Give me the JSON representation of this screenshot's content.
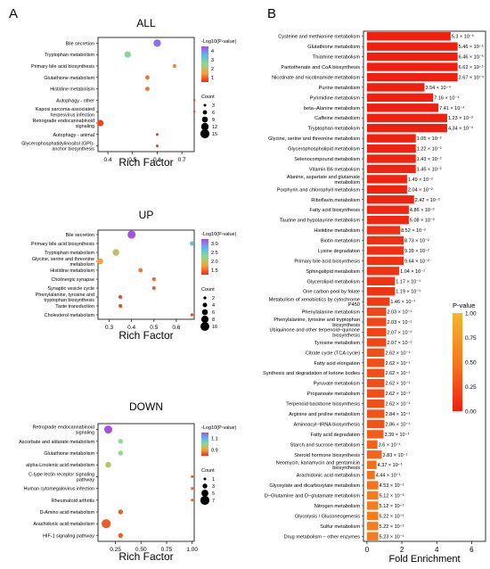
{
  "panel_labels": [
    "A",
    "B"
  ],
  "dot_plots": [
    {
      "title": "ALL",
      "xlabel": "Rich Factor",
      "xticks": [
        0.4,
        0.5,
        0.6,
        0.7
      ],
      "xlim": [
        0.36,
        0.75
      ],
      "color_legend_title": "-Log10(P-value)",
      "color_ticks": [
        "4",
        "3",
        "2",
        "1"
      ],
      "color_range": [
        0.6,
        4.4
      ],
      "size_legend_title": "Count",
      "size_legend": [
        "3",
        "6",
        "9",
        "12",
        "15"
      ],
      "size_values": [
        3,
        6,
        9,
        12,
        15
      ],
      "size_range": [
        2,
        16
      ],
      "terms": [
        {
          "name": "Bile secretion",
          "rich": 0.6,
          "logp": 4.1,
          "count": 12
        },
        {
          "name": "Tryptophan metabolism",
          "rich": 0.48,
          "logp": 2.6,
          "count": 10
        },
        {
          "name": "Primary bile acid biosynthesis",
          "rich": 0.67,
          "logp": 1.3,
          "count": 5
        },
        {
          "name": "Glutathione metabolism",
          "rich": 0.56,
          "logp": 1.2,
          "count": 6
        },
        {
          "name": "Histidine metabolism",
          "rich": 0.56,
          "logp": 1.2,
          "count": 6
        },
        {
          "name": "Autophagy - other",
          "rich": 0.75,
          "logp": 0.7,
          "count": 2
        },
        {
          "name": "Kaposi sarcoma-associated herpesvirus infection",
          "rich": 0.75,
          "logp": 0.7,
          "count": 2
        },
        {
          "name": "Retrograde endocannabinoid signaling",
          "rich": 0.37,
          "logp": 0.8,
          "count": 10
        },
        {
          "name": "Autophagy - animal",
          "rich": 0.6,
          "logp": 0.7,
          "count": 3
        },
        {
          "name": "Glycerophosphatidylinositol (GPI)- anchor biosynthesis",
          "rich": 0.6,
          "logp": 0.7,
          "count": 3
        }
      ]
    },
    {
      "title": "UP",
      "xlabel": "Rich Factor",
      "xticks": [
        0.3,
        0.4,
        0.5,
        0.6
      ],
      "xlim": [
        0.25,
        0.68
      ],
      "color_legend_title": "-Log10(P-value)",
      "color_ticks": [
        "3.0",
        "2.5",
        "2.0",
        "1.5"
      ],
      "color_range": [
        1.3,
        3.2
      ],
      "size_legend_title": "Count",
      "size_legend": [
        "2",
        "4",
        "6",
        "8",
        "10"
      ],
      "size_values": [
        2,
        4,
        6,
        8,
        10
      ],
      "size_range": [
        1,
        11
      ],
      "terms": [
        {
          "name": "Bile secretion",
          "rich": 0.4,
          "logp": 3.2,
          "count": 9
        },
        {
          "name": "Primary bile acid biosynthesis",
          "rich": 0.67,
          "logp": 2.6,
          "count": 4
        },
        {
          "name": "Tryptophan metabolism",
          "rich": 0.33,
          "logp": 2.0,
          "count": 7
        },
        {
          "name": "Glycine, serine and threonine metabolism",
          "rich": 0.26,
          "logp": 1.8,
          "count": 6
        },
        {
          "name": "Histidine metabolism",
          "rich": 0.44,
          "logp": 1.6,
          "count": 4
        },
        {
          "name": "Cholinergic synapse",
          "rich": 0.5,
          "logp": 1.5,
          "count": 3
        },
        {
          "name": "Synaptic vesicle cycle",
          "rich": 0.5,
          "logp": 1.5,
          "count": 3
        },
        {
          "name": "Phenylalanine, tyrosine and tryptophan biosynthesis",
          "rich": 0.35,
          "logp": 1.4,
          "count": 3
        },
        {
          "name": "Taste transduction",
          "rich": 0.35,
          "logp": 1.4,
          "count": 3
        },
        {
          "name": "Cholesterol metabolism",
          "rich": 0.67,
          "logp": 1.4,
          "count": 2
        }
      ]
    },
    {
      "title": "DOWN",
      "xlabel": "Rich Factor",
      "xticks": [
        0.25,
        0.5,
        0.75,
        1.0
      ],
      "xtick_labels": [
        "0.25",
        "0.50",
        "0.75",
        "1.00"
      ],
      "xlim": [
        0.08,
        1.02
      ],
      "color_legend_title": "-Log10(P-value)",
      "color_ticks": [
        "1.1",
        "0.9"
      ],
      "color_range": [
        0.75,
        1.25
      ],
      "size_legend_title": "Count",
      "size_legend": [
        "1",
        "3",
        "5",
        "7"
      ],
      "size_values": [
        1,
        3,
        5,
        7
      ],
      "size_range": [
        0.5,
        7.5
      ],
      "terms": [
        {
          "name": "Retrograde endocannabinoid signaling",
          "rich": 0.18,
          "logp": 1.25,
          "count": 6
        },
        {
          "name": "Ascorbate and aldarate metabolism",
          "rich": 0.3,
          "logp": 1.0,
          "count": 3
        },
        {
          "name": "Glutathione metabolism",
          "rich": 0.3,
          "logp": 1.0,
          "count": 3
        },
        {
          "name": "alpha-Linolenic acid metabolism",
          "rich": 0.18,
          "logp": 0.95,
          "count": 4
        },
        {
          "name": "C-type lectin receptor signaling pathway",
          "rich": 1.0,
          "logp": 0.8,
          "count": 1
        },
        {
          "name": "Human cytomegalovirus infection",
          "rich": 1.0,
          "logp": 0.8,
          "count": 1
        },
        {
          "name": "Rheumatoid arthritis",
          "rich": 1.0,
          "logp": 0.8,
          "count": 1
        },
        {
          "name": "D-Amino acid metabolism",
          "rich": 0.3,
          "logp": 0.8,
          "count": 3
        },
        {
          "name": "Arachidonic acid metabolism",
          "rich": 0.16,
          "logp": 0.8,
          "count": 7
        },
        {
          "name": "HIF-1 signaling pathway",
          "rich": 0.3,
          "logp": 0.8,
          "count": 3
        }
      ]
    }
  ],
  "bar_chart": {
    "type": "bar",
    "xlabel": "Fold Enrichment",
    "xticks": [
      0,
      2,
      4,
      6
    ],
    "xlim": [
      -0.2,
      6.8
    ],
    "legend_title": "P-value",
    "legend_ticks": [
      "1.00",
      "0.75",
      "0.50",
      "0.25",
      "0.00"
    ],
    "bars": [
      {
        "name": "Cysteine and methionine metabolism",
        "fold": 4.8,
        "p": "5.3 × 10⁻⁶",
        "pval": 5.3e-06
      },
      {
        "name": "Glutathione metabolism",
        "fold": 5.2,
        "p": "5.46 × 10⁻⁵",
        "pval": 5.46e-05
      },
      {
        "name": "Thiamine metabolism",
        "fold": 5.2,
        "p": "6.46 × 10⁻⁵",
        "pval": 6.46e-05
      },
      {
        "name": "Pantothenate and CoA biosynthesis",
        "fold": 5.2,
        "p": "6.62 × 10⁻⁵",
        "pval": 6.62e-05
      },
      {
        "name": "Nicotinate and nicotinamide metabolism",
        "fold": 5.2,
        "p": "2.67 × 10⁻⁴",
        "pval": 0.000267
      },
      {
        "name": "Purine metabolism",
        "fold": 3.3,
        "p": "3.54 × 10⁻⁴",
        "pval": 0.000354
      },
      {
        "name": "Pyrimidine metabolism",
        "fold": 3.8,
        "p": "7.16 × 10⁻⁴",
        "pval": 0.000716
      },
      {
        "name": "beta−Alanine metabolism",
        "fold": 4.1,
        "p": "7.41 × 10⁻⁴",
        "pval": 0.000741
      },
      {
        "name": "Caffeine metabolism",
        "fold": 4.6,
        "p": "1.23 × 10⁻³",
        "pval": 0.00123
      },
      {
        "name": "Tryptophan metabolism",
        "fold": 4.6,
        "p": "4.34 × 10⁻³",
        "pval": 0.00434
      },
      {
        "name": "Glycine, serine and threonine metabolism",
        "fold": 2.8,
        "p": "1.05 × 10⁻²",
        "pval": 0.0105
      },
      {
        "name": "Glycerophospholipid metabolism",
        "fold": 2.8,
        "p": "1.22 × 10⁻²",
        "pval": 0.0122
      },
      {
        "name": "Selenocompound metabolism",
        "fold": 2.8,
        "p": "1.43 × 10⁻²",
        "pval": 0.0143
      },
      {
        "name": "Vitamin B6 metabolism",
        "fold": 2.8,
        "p": "1.45 × 10⁻²",
        "pval": 0.0145
      },
      {
        "name": "Alanine, aspartate and glutamate metabolism",
        "fold": 2.3,
        "p": "1.49 × 10⁻²",
        "pval": 0.0149
      },
      {
        "name": "Porphyrin and chlorophyll metabolism",
        "fold": 2.3,
        "p": "2.04 × 10⁻²",
        "pval": 0.0204
      },
      {
        "name": "Riboflavin metabolism",
        "fold": 2.7,
        "p": "2.42 × 10⁻²",
        "pval": 0.0242
      },
      {
        "name": "Fatty acid biosynthesis",
        "fold": 2.4,
        "p": "4.86 × 10⁻²",
        "pval": 0.0486
      },
      {
        "name": "Taurine and hypotaurine metabolism",
        "fold": 2.4,
        "p": "5.08 × 10⁻²",
        "pval": 0.0508
      },
      {
        "name": "Histidine metabolism",
        "fold": 1.9,
        "p": "8.52 × 10⁻²",
        "pval": 0.0852
      },
      {
        "name": "Biotin metabolism",
        "fold": 2.1,
        "p": "8.73 × 10⁻²",
        "pval": 0.0873
      },
      {
        "name": "Lysine degradation",
        "fold": 2.1,
        "p": "9.39 × 10⁻²",
        "pval": 0.0939
      },
      {
        "name": "Primary bile acid biosynthesis",
        "fold": 2.1,
        "p": "9.64 × 10⁻²",
        "pval": 0.0964
      },
      {
        "name": "Sphingolipid metabolism",
        "fold": 1.85,
        "p": "1.04 × 10⁻¹",
        "pval": 0.104
      },
      {
        "name": "Glycerolipid metabolism",
        "fold": 1.6,
        "p": "1.17 × 10⁻¹",
        "pval": 0.117
      },
      {
        "name": "One carbon pool by folate",
        "fold": 1.6,
        "p": "1.19 × 10⁻¹",
        "pval": 0.119
      },
      {
        "name": "Metabolism of xenobiotics by cytochrome P450",
        "fold": 1.3,
        "p": "1.46 × 10⁻¹",
        "pval": 0.146
      },
      {
        "name": "Phenylalanine metabolism",
        "fold": 1.1,
        "p": "2.03 × 10⁻¹",
        "pval": 0.203
      },
      {
        "name": "Phenylalanine, tyrosine and tryptophan biosynthesis",
        "fold": 1.1,
        "p": "2.03 × 10⁻¹",
        "pval": 0.203
      },
      {
        "name": "Ubiquinone and other terpenoid−quinone biosynthesis",
        "fold": 1.1,
        "p": "2.07 × 10⁻¹",
        "pval": 0.207
      },
      {
        "name": "Tyrosine metabolism",
        "fold": 1.1,
        "p": "2.07 × 10⁻¹",
        "pval": 0.207
      },
      {
        "name": "Citrate cycle (TCA cycle)",
        "fold": 1.0,
        "p": "2.62 × 10⁻¹",
        "pval": 0.262
      },
      {
        "name": "Fatty acid elongation",
        "fold": 1.0,
        "p": "2.62 × 10⁻¹",
        "pval": 0.262
      },
      {
        "name": "Synthesis and degradation of ketone bodies",
        "fold": 1.0,
        "p": "2.62 × 10⁻¹",
        "pval": 0.262
      },
      {
        "name": "Pyruvate metabolism",
        "fold": 1.0,
        "p": "2.62 × 10⁻¹",
        "pval": 0.262
      },
      {
        "name": "Propanoate metabolism",
        "fold": 1.0,
        "p": "2.62 × 10⁻¹",
        "pval": 0.262
      },
      {
        "name": "Terpenoid backbone biosynthesis",
        "fold": 1.0,
        "p": "2.62 × 10⁻¹",
        "pval": 0.262
      },
      {
        "name": "Arginine and proline metabolism",
        "fold": 1.0,
        "p": "2.84 × 10⁻¹",
        "pval": 0.284
      },
      {
        "name": "Aminoacyl−tRNA biosynthesis",
        "fold": 1.0,
        "p": "2.86 × 10⁻¹",
        "pval": 0.286
      },
      {
        "name": "Fatty acid degradation",
        "fold": 0.95,
        "p": "3.39 × 10⁻¹",
        "pval": 0.339
      },
      {
        "name": "Starch and sucrose metabolism",
        "fold": 0.6,
        "p": "3.6 × 10⁻¹",
        "pval": 0.36
      },
      {
        "name": "Steroid hormone biosynthesis",
        "fold": 0.85,
        "p": "3.83 × 10⁻¹",
        "pval": 0.383
      },
      {
        "name": "Neomycin, kanamycin and gentamicin biosynthesis",
        "fold": 0.55,
        "p": "4.37 × 10⁻¹",
        "pval": 0.437
      },
      {
        "name": "Arachidonic acid metabolism",
        "fold": 0.45,
        "p": "4.44 × 10⁻¹",
        "pval": 0.444
      },
      {
        "name": "Glyoxylate and dicarboxylate metabolism",
        "fold": 0.65,
        "p": "4.53 × 10⁻¹",
        "pval": 0.453
      },
      {
        "name": "D−Glutamine and D−glutamate metabolism",
        "fold": 0.65,
        "p": "5.12 × 10⁻¹",
        "pval": 0.512
      },
      {
        "name": "Nitrogen metabolism",
        "fold": 0.65,
        "p": "5.12 × 10⁻¹",
        "pval": 0.512
      },
      {
        "name": "Glycolysis / Gluconeogenesis",
        "fold": 0.65,
        "p": "5.22 × 10⁻¹",
        "pval": 0.522
      },
      {
        "name": "Sulfur metabolism",
        "fold": 0.65,
        "p": "5.22 × 10⁻¹",
        "pval": 0.522
      },
      {
        "name": "Drug metabolism − other enzymes",
        "fold": 0.65,
        "p": "5.23 × 10⁻¹",
        "pval": 0.523
      }
    ]
  }
}
